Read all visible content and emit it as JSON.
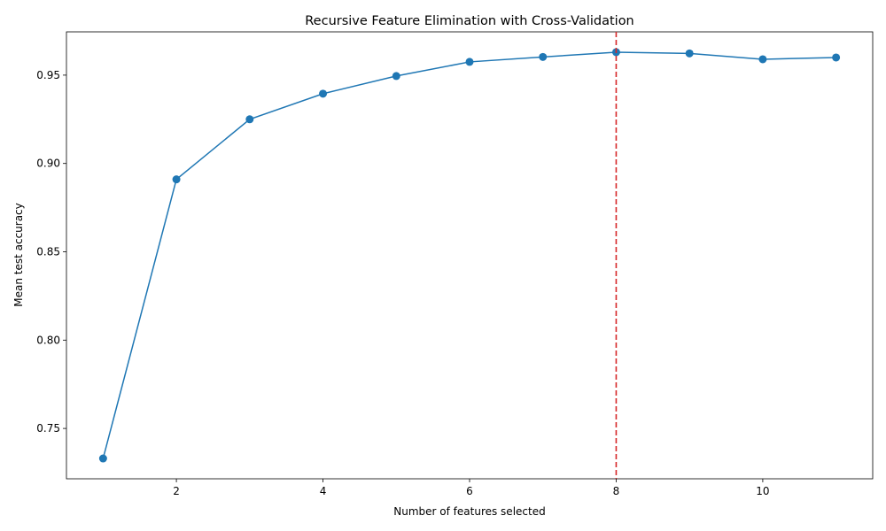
{
  "chart_data": {
    "type": "line",
    "title": "Recursive Feature Elimination with Cross-Validation",
    "xlabel": "Number of features selected",
    "ylabel": "Mean test accuracy",
    "x": [
      1,
      2,
      3,
      4,
      5,
      6,
      7,
      8,
      9,
      10,
      11
    ],
    "series": [
      {
        "values": [
          0.733,
          0.891,
          0.925,
          0.9395,
          0.9495,
          0.9575,
          0.9603,
          0.963,
          0.9623,
          0.959,
          0.96
        ],
        "color": "#1f77b4",
        "marker": "circle"
      }
    ],
    "xlim": [
      0.5,
      11.5
    ],
    "ylim": [
      0.7215,
      0.9745
    ],
    "xticks": [
      2,
      4,
      6,
      8,
      10
    ],
    "xtick_labels": [
      "2",
      "4",
      "6",
      "8",
      "10"
    ],
    "yticks": [
      0.75,
      0.8,
      0.85,
      0.9,
      0.95
    ],
    "ytick_labels": [
      "0.75",
      "0.80",
      "0.85",
      "0.90",
      "0.95"
    ],
    "vline": {
      "x": 8,
      "color": "#d62728",
      "style": "dashed"
    },
    "grid": false,
    "legend": "none"
  }
}
